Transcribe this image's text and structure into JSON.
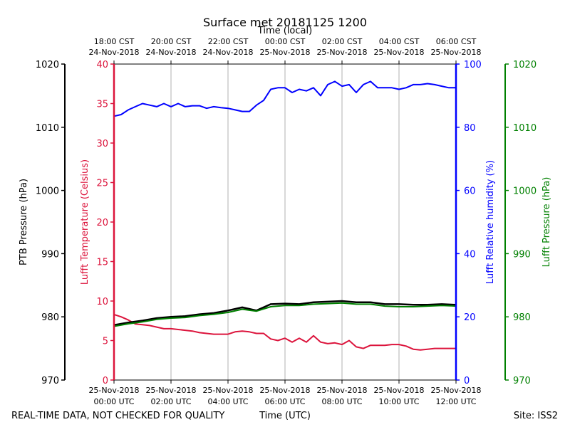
{
  "chart_data": {
    "type": "line",
    "title": "Surface met 20181125 1200",
    "top_axis_label": "Time (local)",
    "xlabel": "Time (UTC)",
    "footer_left": "REAL-TIME DATA, NOT CHECKED FOR QUALITY",
    "footer_right": "Site: ISS2",
    "x_hours_utc": [
      0,
      12
    ],
    "x_ticks_utc": [
      {
        "hour": 0,
        "line1": "25-Nov-2018",
        "line2": "00:00 UTC"
      },
      {
        "hour": 2,
        "line1": "25-Nov-2018",
        "line2": "02:00 UTC"
      },
      {
        "hour": 4,
        "line1": "25-Nov-2018",
        "line2": "04:00 UTC"
      },
      {
        "hour": 6,
        "line1": "25-Nov-2018",
        "line2": "06:00 UTC"
      },
      {
        "hour": 8,
        "line1": "25-Nov-2018",
        "line2": "08:00 UTC"
      },
      {
        "hour": 10,
        "line1": "25-Nov-2018",
        "line2": "10:00 UTC"
      },
      {
        "hour": 12,
        "line1": "25-Nov-2018",
        "line2": "12:00 UTC"
      }
    ],
    "x_ticks_local": [
      {
        "hour": 0,
        "line1": "18:00 CST",
        "line2": "24-Nov-2018"
      },
      {
        "hour": 2,
        "line1": "20:00 CST",
        "line2": "24-Nov-2018"
      },
      {
        "hour": 4,
        "line1": "22:00 CST",
        "line2": "24-Nov-2018"
      },
      {
        "hour": 6,
        "line1": "00:00 CST",
        "line2": "25-Nov-2018"
      },
      {
        "hour": 8,
        "line1": "02:00 CST",
        "line2": "25-Nov-2018"
      },
      {
        "hour": 10,
        "line1": "04:00 CST",
        "line2": "25-Nov-2018"
      },
      {
        "hour": 12,
        "line1": "06:00 CST",
        "line2": "25-Nov-2018"
      }
    ],
    "axes": {
      "ptb": {
        "label": "PTB Pressure (hPa)",
        "ylim": [
          970,
          1020
        ],
        "ticks": [
          970,
          980,
          990,
          1000,
          1010,
          1020
        ],
        "color": "#000000"
      },
      "temp": {
        "label": "Lufft Temperature (Celsius)",
        "ylim": [
          0,
          40
        ],
        "ticks": [
          0,
          5,
          10,
          15,
          20,
          25,
          30,
          35,
          40
        ],
        "color": "#dc143c"
      },
      "rh": {
        "label": "Lufft Relative humidity (%)",
        "ylim": [
          0,
          100
        ],
        "ticks": [
          0,
          20,
          40,
          60,
          80,
          100
        ],
        "color": "#0000ff"
      },
      "lufft_p": {
        "label": "Lufft Pressure (hPa)",
        "ylim": [
          970,
          1020
        ],
        "ticks": [
          970,
          980,
          990,
          1000,
          1010,
          1020
        ],
        "color": "#008000"
      }
    },
    "series": [
      {
        "name": "Lufft Relative humidity (%)",
        "axis": "rh",
        "color": "#0000ff",
        "x": [
          0,
          0.25,
          0.5,
          0.75,
          1,
          1.25,
          1.5,
          1.75,
          2,
          2.25,
          2.5,
          2.75,
          3,
          3.25,
          3.5,
          3.75,
          4,
          4.25,
          4.5,
          4.75,
          5,
          5.25,
          5.5,
          5.75,
          6,
          6.25,
          6.5,
          6.75,
          7,
          7.25,
          7.5,
          7.75,
          8,
          8.25,
          8.5,
          8.75,
          9,
          9.25,
          9.5,
          9.75,
          10,
          10.25,
          10.5,
          10.75,
          11,
          11.25,
          11.5,
          11.75,
          12
        ],
        "values": [
          83.5,
          84,
          85.5,
          86.5,
          87.5,
          87,
          86.5,
          87.5,
          86.5,
          87.5,
          86.5,
          86.8,
          86.8,
          86,
          86.5,
          86.2,
          86,
          85.5,
          85,
          85,
          87,
          88.5,
          92,
          92.5,
          92.5,
          91,
          92,
          91.5,
          92.5,
          90,
          93.5,
          94.5,
          93,
          93.5,
          91,
          93.5,
          94.5,
          92.5,
          92.5,
          92.5,
          92,
          92.5,
          93.5,
          93.5,
          93.8,
          93.5,
          93,
          92.5,
          92.5
        ]
      },
      {
        "name": "Lufft Temperature (Celsius)",
        "axis": "temp",
        "color": "#dc143c",
        "x": [
          0,
          0.25,
          0.5,
          0.75,
          1,
          1.25,
          1.5,
          1.75,
          2,
          2.25,
          2.5,
          2.75,
          3,
          3.25,
          3.5,
          3.75,
          4,
          4.25,
          4.5,
          4.75,
          5,
          5.25,
          5.5,
          5.75,
          6,
          6.25,
          6.5,
          6.75,
          7,
          7.25,
          7.5,
          7.75,
          8,
          8.25,
          8.5,
          8.75,
          9,
          9.25,
          9.5,
          9.75,
          10,
          10.25,
          10.5,
          10.75,
          11,
          11.25,
          11.5,
          11.75,
          12
        ],
        "values": [
          8.3,
          8,
          7.6,
          7.1,
          7,
          6.9,
          6.7,
          6.5,
          6.5,
          6.4,
          6.3,
          6.2,
          6,
          5.9,
          5.8,
          5.8,
          5.8,
          6.1,
          6.2,
          6.1,
          5.9,
          5.9,
          5.2,
          5,
          5.3,
          4.8,
          5.3,
          4.8,
          5.6,
          4.8,
          4.6,
          4.7,
          4.5,
          5,
          4.2,
          4,
          4.4,
          4.4,
          4.4,
          4.5,
          4.5,
          4.3,
          3.9,
          3.8,
          3.9,
          4,
          4,
          4,
          4
        ]
      },
      {
        "name": "PTB Pressure (hPa)",
        "axis": "ptb",
        "color": "#000000",
        "x": [
          0,
          0.5,
          1,
          1.5,
          2,
          2.5,
          3,
          3.5,
          4,
          4.5,
          5,
          5.5,
          6,
          6.5,
          7,
          7.5,
          8,
          8.5,
          9,
          9.5,
          10,
          10.5,
          11,
          11.5,
          12
        ],
        "values": [
          978.7,
          979.1,
          979.4,
          979.8,
          980,
          980.1,
          980.4,
          980.6,
          981,
          981.5,
          981,
          982,
          982.1,
          982,
          982.3,
          982.4,
          982.5,
          982.3,
          982.3,
          982,
          982,
          981.9,
          981.9,
          982,
          981.9
        ]
      },
      {
        "name": "Lufft Pressure (hPa)",
        "axis": "lufft_p",
        "color": "#008000",
        "x": [
          0,
          0.5,
          1,
          1.5,
          2,
          2.5,
          3,
          3.5,
          4,
          4.5,
          5,
          5.5,
          6,
          6.5,
          7,
          7.5,
          8,
          8.5,
          9,
          9.5,
          10,
          10.5,
          11,
          11.5,
          12
        ],
        "values": [
          978.5,
          978.9,
          979.2,
          979.6,
          979.8,
          979.9,
          980.2,
          980.4,
          980.7,
          981.2,
          980.9,
          981.6,
          981.8,
          981.8,
          982,
          982.1,
          982.2,
          982,
          982,
          981.7,
          981.6,
          981.6,
          981.7,
          981.8,
          981.7
        ]
      }
    ]
  }
}
